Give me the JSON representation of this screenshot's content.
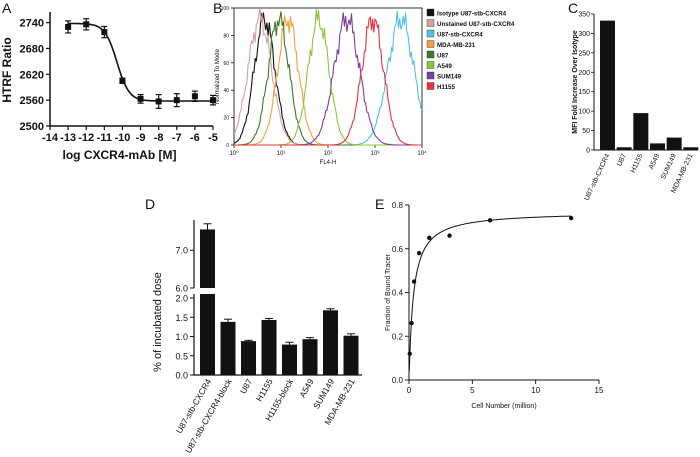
{
  "chart_data": [
    {
      "panel": "A",
      "type": "line",
      "xlabel": "log CXCR4-mAb [M]",
      "ylabel": "HTRF Ratio",
      "xlim": [
        -14,
        -5
      ],
      "ylim": [
        2500,
        2760
      ],
      "xticks": [
        "-14",
        "-13",
        "-12",
        "-11",
        "-10",
        "-9",
        "-8",
        "-7",
        "-6",
        "-5"
      ],
      "yticks": [
        "2500",
        "2560",
        "2620",
        "2680",
        "2740"
      ],
      "x": [
        -13,
        -12,
        -11,
        -10,
        -9,
        -8,
        -7,
        -6,
        -5
      ],
      "values": [
        2730,
        2736,
        2718,
        2605,
        2563,
        2557,
        2560,
        2569,
        2560
      ],
      "errors": [
        14,
        13,
        13,
        6,
        10,
        16,
        15,
        12,
        11
      ],
      "fit": {
        "top": 2738,
        "bottom": 2558,
        "logEC50": -10.3,
        "hill": 1.3
      }
    },
    {
      "panel": "B",
      "type": "line",
      "xlabel": "FL4-H",
      "ylabel": "Normalized To Mode",
      "xlim": [
        0,
        4
      ],
      "ylim": [
        0,
        100
      ],
      "xticks": [
        "10⁰",
        "10¹",
        "10²",
        "10³",
        "10⁴"
      ],
      "yticks": [
        "0",
        "20",
        "40",
        "60",
        "80",
        "100"
      ],
      "series": [
        {
          "name": "Isotype U87-stb-CXCR4",
          "color": "#111111",
          "peak": 0.65,
          "width": 0.22
        },
        {
          "name": "Unstained U87-stb-CXCR4",
          "color": "#d9a0a0",
          "peak": 0.55,
          "width": 0.25
        },
        {
          "name": "U87-stb-CXCR4",
          "color": "#4ec3e0",
          "peak": 3.55,
          "width": 0.28
        },
        {
          "name": "MDA-MB-231",
          "color": "#f5a03c",
          "peak": 1.15,
          "width": 0.22
        },
        {
          "name": "U87",
          "color": "#3a7a2a",
          "peak": 0.95,
          "width": 0.22
        },
        {
          "name": "A549",
          "color": "#8cc63f",
          "peak": 1.8,
          "width": 0.22
        },
        {
          "name": "SUM149",
          "color": "#7b3fa0",
          "peak": 2.4,
          "width": 0.27
        },
        {
          "name": "H1155",
          "color": "#e8303a",
          "peak": 2.95,
          "width": 0.23
        }
      ]
    },
    {
      "panel": "C",
      "type": "bar",
      "ylabel": "MFI Fold Increase Over Isotype",
      "ylim": [
        0,
        350
      ],
      "yticks": [
        "0",
        "50",
        "100",
        "150",
        "200",
        "250",
        "300",
        "350"
      ],
      "categories": [
        "U87-stb-CXCR4",
        "U87",
        "H1155",
        "A549",
        "SUM149",
        "MDA-MB-231"
      ],
      "values": [
        333,
        7,
        95,
        17,
        32,
        7
      ]
    },
    {
      "panel": "D",
      "type": "bar",
      "ylabel": "% of incubated dose",
      "yticks_lower": [
        "0.0",
        "0.5",
        "1.0",
        "1.5",
        "2.0"
      ],
      "yticks_upper": [
        "6.0",
        "7.0"
      ],
      "categories": [
        "U87-stb-CXCR4",
        "U87-stb-CXCR4-block",
        "U87",
        "H1155",
        "H1155-block",
        "A549",
        "SUM149",
        "MDA-MB-231"
      ],
      "values": [
        7.55,
        1.38,
        0.88,
        1.43,
        0.79,
        0.93,
        1.68,
        1.02
      ],
      "errors": [
        0.15,
        0.07,
        0.02,
        0.04,
        0.06,
        0.04,
        0.04,
        0.05
      ]
    },
    {
      "panel": "E",
      "type": "scatter",
      "xlabel": "Cell Number (million)",
      "ylabel": "Fraction of Bound Tracer",
      "xlim": [
        0,
        15
      ],
      "ylim": [
        0,
        0.8
      ],
      "xticks": [
        "0",
        "5",
        "10",
        "15"
      ],
      "yticks": [
        "0.0",
        "0.2",
        "0.4",
        "0.6",
        "0.8"
      ],
      "x": [
        0.06,
        0.2,
        0.4,
        0.8,
        1.6,
        3.2,
        6.4,
        12.8
      ],
      "values": [
        0.12,
        0.26,
        0.45,
        0.58,
        0.65,
        0.66,
        0.73,
        0.74
      ],
      "fit": {
        "bmax": 0.77,
        "kd": 0.35
      }
    }
  ],
  "panel_letters": {
    "a": "A",
    "b": "B",
    "c": "C",
    "d": "D",
    "e": "E"
  }
}
